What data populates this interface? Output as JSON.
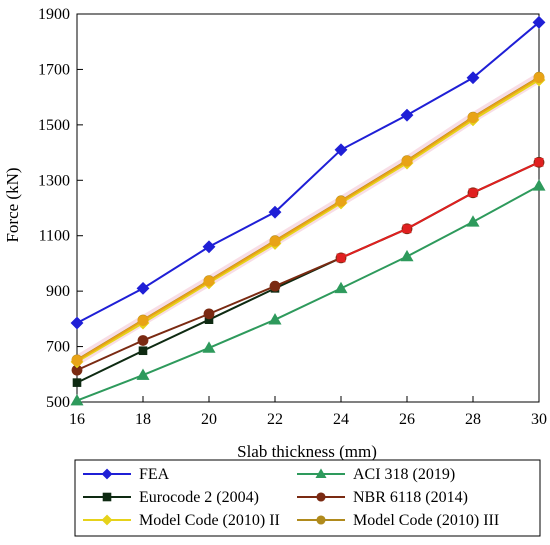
{
  "chart_data": {
    "type": "line",
    "title": "",
    "xlabel": "Slab thickness (mm)",
    "ylabel": "Force (kN)",
    "x": [
      16,
      18,
      20,
      22,
      24,
      26,
      28,
      30
    ],
    "xticks": [
      "16",
      "18",
      "20",
      "22",
      "24",
      "26",
      "28",
      "30"
    ],
    "yticks": [
      "500",
      "700",
      "900",
      "1100",
      "1300",
      "1500",
      "1700",
      "1900"
    ],
    "xlim": [
      16,
      30
    ],
    "ylim": [
      500,
      1900
    ],
    "grid": false,
    "legend_position": "bottom",
    "series": [
      {
        "name": "FEA",
        "color": "#1f1fd6",
        "marker": "diamond",
        "values": [
          785,
          910,
          1060,
          1185,
          1410,
          1535,
          1670,
          1870
        ]
      },
      {
        "name": "ACI 318 (2019)",
        "color": "#2e9a5c",
        "marker": "triangle",
        "values": [
          505,
          597,
          695,
          797,
          910,
          1025,
          1150,
          1280
        ]
      },
      {
        "name": "Eurocode 2 (2004)",
        "color": "#0e2a12",
        "marker": "square",
        "values": [
          570,
          685,
          797,
          910,
          1020,
          1125,
          1255,
          1365
        ]
      },
      {
        "name": "NBR 6118 (2014)",
        "color": "#7a2a12",
        "marker": "circle",
        "values": [
          615,
          722,
          818,
          918,
          1020,
          1125,
          1255,
          1365
        ]
      },
      {
        "name": "Model Code (2010) II",
        "color": "#e6d21a",
        "marker": "diamond",
        "values": [
          645,
          785,
          930,
          1072,
          1218,
          1362,
          1518,
          1662
        ]
      },
      {
        "name": "Model Code (2010) III",
        "color": "#b08a1c",
        "marker": "circle",
        "values": [
          652,
          796,
          938,
          1082,
          1226,
          1371,
          1528,
          1672
        ]
      }
    ],
    "overlays": [
      {
        "color": "#e02020",
        "marker": "square",
        "values": [
          null,
          null,
          null,
          null,
          1020,
          1125,
          1255,
          1365
        ]
      },
      {
        "color": "#e8a317",
        "marker": "circle",
        "values": [
          650,
          794,
          936,
          1080,
          1224,
          1369,
          1526,
          1670
        ]
      }
    ]
  }
}
